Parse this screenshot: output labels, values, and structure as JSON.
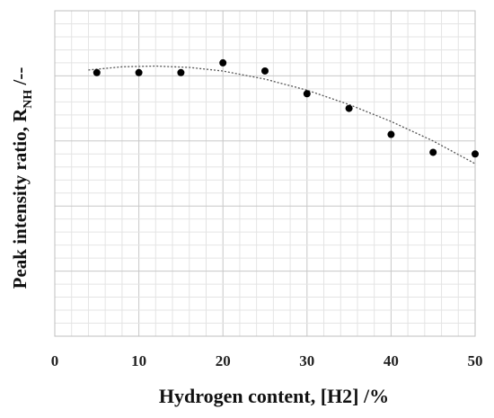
{
  "chart_data": {
    "type": "scatter",
    "xlabel": "Hydrogen content, [H2] /%",
    "ylabel": {
      "main": "Peak intensity ratio, R",
      "subscript": "NH",
      "suffix": " /--"
    },
    "xlim": [
      0,
      50
    ],
    "ylim": [
      0,
      1
    ],
    "xticks": [
      0,
      10,
      20,
      30,
      40,
      50
    ],
    "y_tick_labels_shown": false,
    "grid": true,
    "series": [
      {
        "points": [
          {
            "x": 5,
            "y": 0.81
          },
          {
            "x": 10,
            "y": 0.81
          },
          {
            "x": 15,
            "y": 0.81
          },
          {
            "x": 20,
            "y": 0.84
          },
          {
            "x": 25,
            "y": 0.815
          },
          {
            "x": 30,
            "y": 0.745
          },
          {
            "x": 35,
            "y": 0.7
          },
          {
            "x": 40,
            "y": 0.62
          },
          {
            "x": 45,
            "y": 0.565
          },
          {
            "x": 50,
            "y": 0.56
          }
        ]
      }
    ],
    "trendline": {
      "style": "dotted",
      "type": "polynomial",
      "points": [
        {
          "x": 4,
          "y": 0.818
        },
        {
          "x": 8,
          "y": 0.828
        },
        {
          "x": 12,
          "y": 0.83
        },
        {
          "x": 16,
          "y": 0.826
        },
        {
          "x": 20,
          "y": 0.815
        },
        {
          "x": 25,
          "y": 0.79
        },
        {
          "x": 30,
          "y": 0.756
        },
        {
          "x": 35,
          "y": 0.712
        },
        {
          "x": 40,
          "y": 0.66
        },
        {
          "x": 45,
          "y": 0.6
        },
        {
          "x": 50,
          "y": 0.53
        }
      ]
    }
  }
}
